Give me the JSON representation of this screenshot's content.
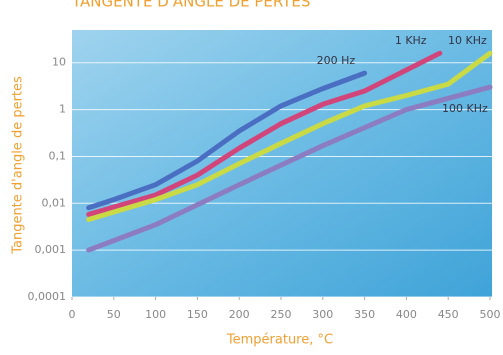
{
  "chart_data": {
    "type": "line",
    "title": "TANGENTE D'ANGLE DE PERTES",
    "xlabel": "Température, °C",
    "ylabel": "Tangente d'angle de pertes",
    "log_y": true,
    "grid": true,
    "xlim": [
      0,
      500
    ],
    "xticks": [
      0,
      50,
      100,
      150,
      200,
      250,
      300,
      350,
      400,
      450,
      500
    ],
    "ylim": [
      0.0001,
      50
    ],
    "yticks": [
      {
        "value": 0.0001,
        "label": "0,0001"
      },
      {
        "value": 0.001,
        "label": "0,001"
      },
      {
        "value": 0.01,
        "label": "0,01"
      },
      {
        "value": 0.1,
        "label": "0,1"
      },
      1,
      10
    ],
    "series": [
      {
        "name": "200 Hz",
        "color": "#4a6ec2",
        "x": [
          20,
          50,
          100,
          150,
          200,
          250,
          300,
          350
        ],
        "values": [
          0.008,
          0.012,
          0.025,
          0.08,
          0.35,
          1.2,
          2.8,
          6
        ]
      },
      {
        "name": "1 KHz",
        "color": "#d2457a",
        "x": [
          20,
          100,
          150,
          200,
          250,
          300,
          350,
          400,
          440
        ],
        "values": [
          0.0058,
          0.015,
          0.04,
          0.15,
          0.5,
          1.3,
          2.5,
          7,
          16
        ]
      },
      {
        "name": "10 KHz",
        "color": "#c9da45",
        "x": [
          20,
          100,
          150,
          200,
          250,
          300,
          350,
          400,
          450,
          500
        ],
        "values": [
          0.0045,
          0.012,
          0.025,
          0.07,
          0.19,
          0.5,
          1.2,
          2,
          3.5,
          16
        ]
      },
      {
        "name": "100 KHz",
        "color": "#8c7cc2",
        "x": [
          20,
          100,
          200,
          300,
          400,
          500
        ],
        "values": [
          0.001,
          0.0035,
          0.025,
          0.17,
          1,
          3
        ]
      }
    ]
  }
}
